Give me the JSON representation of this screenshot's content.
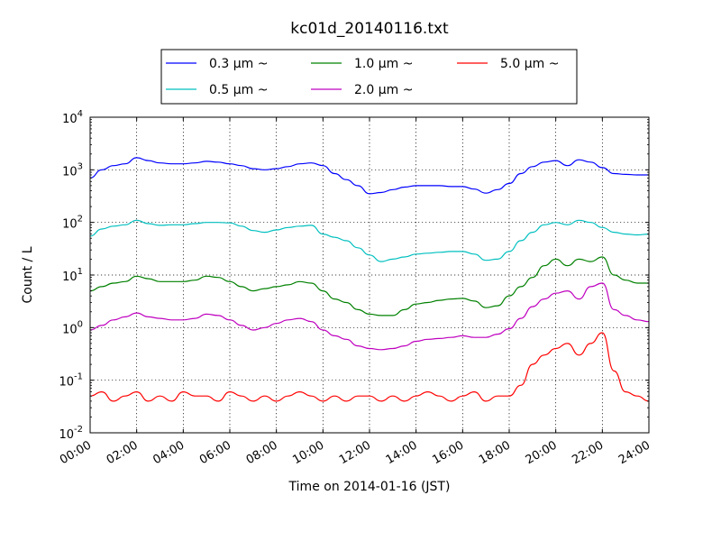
{
  "chart_data": {
    "type": "line",
    "title": "kc01d_20140116.txt",
    "xlabel": "Time on 2014-01-16 (JST)",
    "ylabel": "Count / L",
    "y_scale": "log",
    "ylim": [
      0.01,
      10000
    ],
    "x_range": [
      "00:00",
      "24:00"
    ],
    "grid": true,
    "legend_placement": "top-center",
    "x_ticks": [
      "00:00",
      "02:00",
      "04:00",
      "06:00",
      "08:00",
      "10:00",
      "12:00",
      "14:00",
      "16:00",
      "18:00",
      "20:00",
      "22:00",
      "24:00"
    ],
    "x_ticks_hours": [
      0,
      2,
      4,
      6,
      8,
      10,
      12,
      14,
      16,
      18,
      20,
      22,
      24
    ],
    "y_ticks": [
      {
        "base": "10",
        "exp": "-2",
        "value": 0.01
      },
      {
        "base": "10",
        "exp": "-1",
        "value": 0.1
      },
      {
        "base": "10",
        "exp": "0",
        "value": 1
      },
      {
        "base": "10",
        "exp": "1",
        "value": 10
      },
      {
        "base": "10",
        "exp": "2",
        "value": 100
      },
      {
        "base": "10",
        "exp": "3",
        "value": 1000
      },
      {
        "base": "10",
        "exp": "4",
        "value": 10000
      }
    ],
    "x_hours": [
      0,
      0.5,
      1,
      1.5,
      2,
      2.5,
      3,
      3.5,
      4,
      4.5,
      5,
      5.5,
      6,
      6.5,
      7,
      7.5,
      8,
      8.5,
      9,
      9.5,
      10,
      10.5,
      11,
      11.5,
      12,
      12.5,
      13,
      13.5,
      14,
      14.5,
      15,
      15.5,
      16,
      16.5,
      17,
      17.5,
      18,
      18.5,
      19,
      19.5,
      20,
      20.5,
      21,
      21.5,
      22,
      22.5,
      23,
      23.5,
      24
    ],
    "series": [
      {
        "name": "0.3 μm ~",
        "color": "#0000ff",
        "values": [
          700,
          1000,
          1200,
          1300,
          1700,
          1500,
          1350,
          1300,
          1300,
          1350,
          1450,
          1400,
          1300,
          1200,
          1050,
          1000,
          1050,
          1150,
          1300,
          1350,
          1200,
          850,
          650,
          500,
          350,
          370,
          420,
          470,
          500,
          500,
          500,
          480,
          480,
          430,
          360,
          420,
          550,
          850,
          1150,
          1400,
          1500,
          1200,
          1550,
          1400,
          1100,
          850,
          820,
          800,
          800
        ]
      },
      {
        "name": "0.5 μm ~",
        "color": "#00bfbf",
        "values": [
          55,
          75,
          85,
          90,
          110,
          95,
          88,
          90,
          90,
          95,
          100,
          100,
          98,
          85,
          70,
          65,
          72,
          80,
          85,
          88,
          60,
          52,
          45,
          33,
          24,
          18,
          20,
          22,
          25,
          26,
          27,
          28,
          28,
          25,
          19,
          20,
          28,
          45,
          65,
          90,
          100,
          90,
          110,
          100,
          80,
          65,
          60,
          58,
          60
        ]
      },
      {
        "name": "1.0 μm ~",
        "color": "#008000",
        "values": [
          5,
          6,
          7,
          7.5,
          9.5,
          8.5,
          7.5,
          7.5,
          7.5,
          8,
          9.5,
          9,
          7.5,
          6,
          5,
          5.5,
          6,
          6.5,
          7.5,
          7,
          5,
          3.5,
          3,
          2.2,
          1.8,
          1.7,
          1.7,
          2.2,
          2.8,
          3,
          3.3,
          3.5,
          3.6,
          3.2,
          2.4,
          2.6,
          4,
          6,
          9,
          15,
          20,
          15,
          20,
          18,
          22,
          10,
          8,
          7,
          7
        ]
      },
      {
        "name": "2.0 μm ~",
        "color": "#bf00bf",
        "values": [
          0.9,
          1.1,
          1.4,
          1.6,
          1.9,
          1.6,
          1.5,
          1.4,
          1.4,
          1.5,
          1.8,
          1.7,
          1.4,
          1.1,
          0.9,
          1,
          1.2,
          1.4,
          1.5,
          1.3,
          0.9,
          0.7,
          0.6,
          0.45,
          0.4,
          0.38,
          0.4,
          0.45,
          0.55,
          0.6,
          0.62,
          0.65,
          0.7,
          0.65,
          0.65,
          0.75,
          0.95,
          1.5,
          2.5,
          3.5,
          4.5,
          5,
          3.5,
          6,
          7,
          2.2,
          1.7,
          1.4,
          1.3
        ]
      },
      {
        "name": "5.0 μm ~",
        "color": "#ff0000",
        "values": [
          0.05,
          0.06,
          0.04,
          0.05,
          0.06,
          0.04,
          0.05,
          0.04,
          0.06,
          0.05,
          0.05,
          0.04,
          0.06,
          0.05,
          0.04,
          0.05,
          0.04,
          0.05,
          0.06,
          0.05,
          0.04,
          0.05,
          0.04,
          0.05,
          0.05,
          0.04,
          0.05,
          0.04,
          0.05,
          0.06,
          0.05,
          0.04,
          0.05,
          0.06,
          0.04,
          0.05,
          0.05,
          0.08,
          0.2,
          0.3,
          0.4,
          0.5,
          0.3,
          0.5,
          0.8,
          0.15,
          0.06,
          0.05,
          0.04
        ]
      }
    ]
  }
}
